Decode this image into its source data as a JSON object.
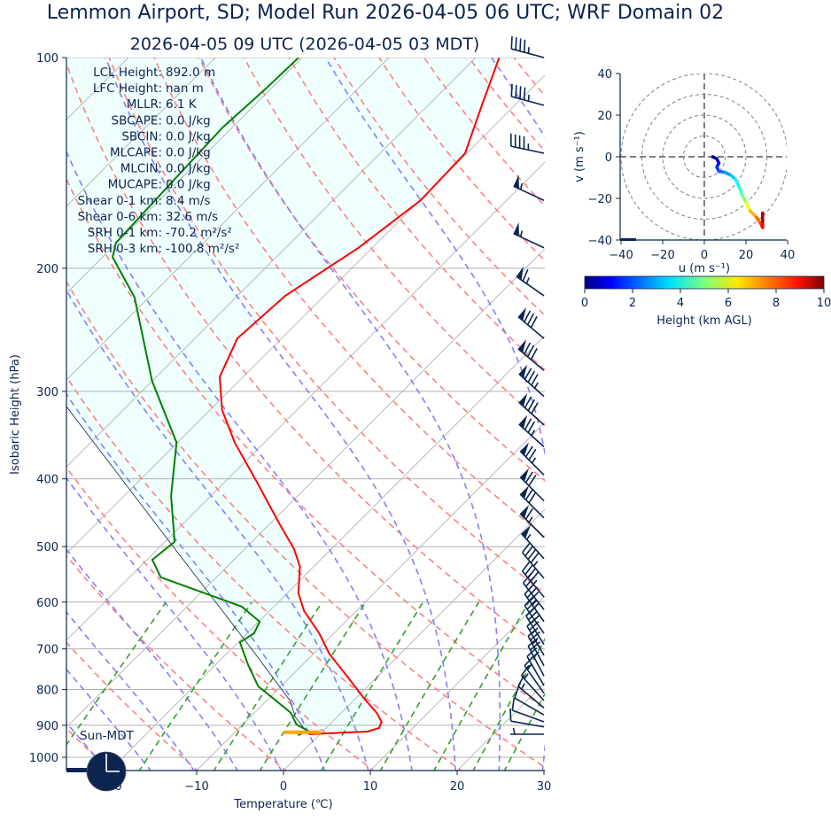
{
  "header": {
    "title": "Lemmon Airport, SD; Model Run 2026-04-05 06 UTC; WRF Domain 02",
    "subtitle": "2026-04-05 09 UTC  (2026-04-05 03 MDT)"
  },
  "stats": [
    {
      "label": "LCL Height:",
      "value": "892.0 m"
    },
    {
      "label": "LFC Height:",
      "value": "nan m"
    },
    {
      "label": "MLLR:",
      "value": "6.1 K"
    },
    {
      "label": "SBCAPE:",
      "value": "0.0 J/kg"
    },
    {
      "label": "SBCIN:",
      "value": "0.0 J/kg"
    },
    {
      "label": "MLCAPE:",
      "value": "0.0 J/kg"
    },
    {
      "label": "MLCIN:",
      "value": "0.0 J/kg"
    },
    {
      "label": "MUCAPE:",
      "value": "0.0 J/kg"
    },
    {
      "label": "Shear 0-1 km:",
      "value": "8.4 m/s"
    },
    {
      "label": "Shear 0-6 km:",
      "value": "32.6 m/s"
    },
    {
      "label": "SRH 0-1 km:",
      "value": "-70.2 m²/s²"
    },
    {
      "label": "SRH 0-3 km:",
      "value": "-100.8 m²/s²"
    }
  ],
  "clock": {
    "label": "Sun-MDT",
    "time": "03:00",
    "icon": "clock-icon"
  },
  "colors": {
    "text": "#0b2450",
    "temperature": "#ff0000",
    "dewpoint": "#008000",
    "parcel": "#0b2450",
    "cin_fill": "#effffe",
    "dry_adiabat": "#ff8080",
    "moist_adiabat": "#8080ff",
    "mixing_ratio": "#33a02c",
    "grid": "#b0b0b0",
    "surface_marker": "#ffa500"
  },
  "chart_data": [
    {
      "type": "line",
      "name": "skew-t",
      "xlabel": "Temperature (℃)",
      "ylabel": "Isobaric Height (hPa)",
      "xlim": [
        -25,
        30
      ],
      "ylim": [
        1045,
        100
      ],
      "yscale": "log",
      "grid": true,
      "xticks": [
        -20,
        -10,
        0,
        10,
        20,
        30
      ],
      "xtick_labels": [
        "−20",
        "−10",
        "0",
        "10",
        "20",
        "30"
      ],
      "yticks": [
        100,
        200,
        300,
        400,
        500,
        600,
        700,
        800,
        900,
        1000
      ],
      "series": [
        {
          "key": "temperature",
          "points": [
            [
              927,
              -1.3
            ],
            [
              919,
              5.2
            ],
            [
              908,
              6.1
            ],
            [
              890,
              5.7
            ],
            [
              864,
              4.1
            ],
            [
              827,
              1.2
            ],
            [
              769,
              -3.3
            ],
            [
              711,
              -8.2
            ],
            [
              665,
              -11.7
            ],
            [
              618,
              -16.0
            ],
            [
              583,
              -18.7
            ],
            [
              534,
              -21.6
            ],
            [
              504,
              -24.3
            ],
            [
              462,
              -29.1
            ],
            [
              405,
              -36.2
            ],
            [
              355,
              -43.4
            ],
            [
              319,
              -48.6
            ],
            [
              286,
              -52.7
            ],
            [
              252,
              -55.1
            ],
            [
              219,
              -54.5
            ],
            [
              187,
              -51.6
            ],
            [
              160,
              -49.9
            ],
            [
              137,
              -50.2
            ],
            [
              117,
              -53.8
            ],
            [
              100,
              -57.3
            ]
          ]
        },
        {
          "key": "dewpoint",
          "points": [
            [
              930,
              -2.4
            ],
            [
              916,
              -1.8
            ],
            [
              898,
              -3.8
            ],
            [
              864,
              -5.8
            ],
            [
              827,
              -9.2
            ],
            [
              792,
              -12.6
            ],
            [
              737,
              -16.3
            ],
            [
              685,
              -19.8
            ],
            [
              665,
              -19.2
            ],
            [
              640,
              -19.9
            ],
            [
              609,
              -23.7
            ],
            [
              553,
              -36.4
            ],
            [
              522,
              -39.4
            ],
            [
              492,
              -38.9
            ],
            [
              423,
              -44.6
            ],
            [
              355,
              -50.1
            ],
            [
              290,
              -60.0
            ],
            [
              220,
              -71.7
            ],
            [
              193,
              -78.8
            ],
            [
              184,
              -80.1
            ],
            [
              153,
              -80.6
            ],
            [
              126,
              -81.1
            ],
            [
              111,
              -80.6
            ],
            [
              100,
              -80.4
            ]
          ]
        },
        {
          "key": "parcel",
          "points": [
            [
              927,
              -1.3
            ],
            [
              876,
              -4.8
            ],
            [
              830,
              -7.3
            ],
            [
              700,
              -17.7
            ],
            [
              500,
              -38.5
            ],
            [
              316,
              -66.8
            ],
            [
              200,
              -90
            ],
            [
              100,
              -115
            ]
          ]
        }
      ],
      "surface_pressure": 921,
      "wind_barbs_kt": [
        [
          100,
          285,
          45
        ],
        [
          117,
          285,
          45
        ],
        [
          137,
          282,
          45
        ],
        [
          160,
          295,
          55
        ],
        [
          187,
          295,
          55
        ],
        [
          219,
          305,
          65
        ],
        [
          252,
          310,
          80
        ],
        [
          280,
          310,
          80
        ],
        [
          305,
          312,
          85
        ],
        [
          335,
          312,
          80
        ],
        [
          360,
          312,
          75
        ],
        [
          395,
          315,
          75
        ],
        [
          430,
          315,
          70
        ],
        [
          455,
          315,
          70
        ],
        [
          485,
          315,
          65
        ],
        [
          520,
          318,
          55
        ],
        [
          555,
          320,
          45
        ],
        [
          590,
          320,
          40
        ],
        [
          615,
          322,
          35
        ],
        [
          640,
          325,
          35
        ],
        [
          665,
          325,
          30
        ],
        [
          690,
          328,
          30
        ],
        [
          715,
          330,
          25
        ],
        [
          740,
          332,
          25
        ],
        [
          765,
          332,
          20
        ],
        [
          790,
          330,
          20
        ],
        [
          810,
          325,
          15
        ],
        [
          830,
          318,
          15
        ],
        [
          850,
          310,
          15
        ],
        [
          870,
          300,
          10
        ],
        [
          890,
          290,
          10
        ],
        [
          905,
          280,
          10
        ],
        [
          927,
          270,
          5
        ]
      ]
    },
    {
      "type": "line",
      "name": "hodograph",
      "xlabel": "u (m s⁻¹)",
      "ylabel": "v (m s⁻¹)",
      "xlim": [
        -40,
        40
      ],
      "ylim": [
        -40,
        40
      ],
      "ticks": [
        -40,
        -20,
        0,
        20,
        40
      ],
      "tick_labels": [
        "−40",
        "−20",
        "0",
        "20",
        "40"
      ],
      "rings": [
        10,
        20,
        30,
        40
      ],
      "points": [
        [
          4,
          0,
          0
        ],
        [
          6,
          -1,
          0.5
        ],
        [
          7,
          -3,
          1
        ],
        [
          6,
          -5,
          1.5
        ],
        [
          7,
          -7,
          2
        ],
        [
          10,
          -7.5,
          2.5
        ],
        [
          13,
          -9,
          3
        ],
        [
          15,
          -11,
          3.5
        ],
        [
          17,
          -15,
          4
        ],
        [
          18,
          -18,
          4.5
        ],
        [
          20,
          -22,
          5.5
        ],
        [
          22,
          -26,
          6.5
        ],
        [
          25,
          -29,
          7.5
        ],
        [
          27,
          -32,
          8
        ],
        [
          28,
          -34,
          8.5
        ],
        [
          28,
          -31,
          9.2
        ],
        [
          28,
          -27,
          10
        ]
      ],
      "colorbar": {
        "label": "Height (km AGL)",
        "min": 0,
        "max": 10,
        "ticks": [
          0,
          2,
          4,
          6,
          8,
          10
        ],
        "colormap": "jet"
      }
    }
  ]
}
